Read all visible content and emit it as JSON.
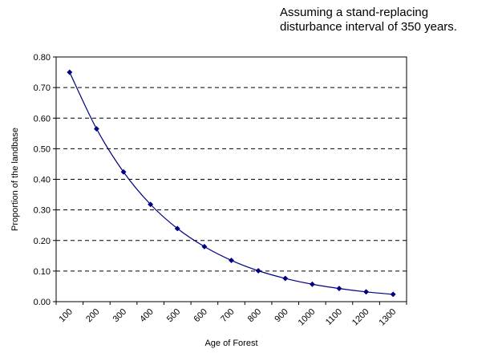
{
  "chart_data": {
    "type": "line",
    "title": "",
    "annotation": [
      "Assuming a stand-replacing",
      "disturbance interval of 350 years."
    ],
    "xlabel": "Age of Forest",
    "ylabel": "Proportion of the landbase",
    "x_ticks": [
      "100",
      "200",
      "300",
      "400",
      "500",
      "600",
      "700",
      "800",
      "900",
      "1000",
      "1100",
      "1200",
      "1300"
    ],
    "y_ticks": [
      "0.00",
      "0.10",
      "0.20",
      "0.30",
      "0.40",
      "0.50",
      "0.60",
      "0.70",
      "0.80"
    ],
    "ylim": [
      0,
      0.8
    ],
    "grid": "horizontal dashed",
    "legend": "none",
    "series": [
      {
        "color": "#000080",
        "marker": "diamond",
        "x": [
          150,
          250,
          350,
          450,
          550,
          650,
          750,
          850,
          950,
          1050,
          1150,
          1250,
          1350
        ],
        "y": [
          0.75,
          0.565,
          0.424,
          0.318,
          0.239,
          0.18,
          0.135,
          0.101,
          0.076,
          0.057,
          0.043,
          0.032,
          0.024
        ]
      }
    ]
  }
}
